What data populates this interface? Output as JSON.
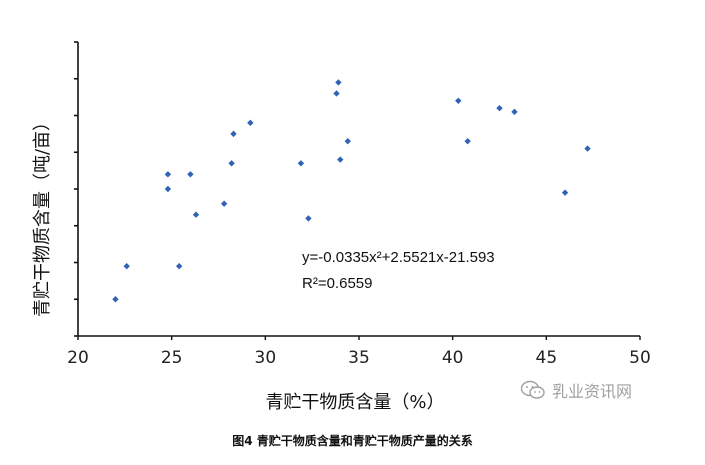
{
  "chart_data": {
    "type": "scatter",
    "xlabel": "青贮干物质含量（%）",
    "ylabel": "青贮干物质含量（吨/亩）",
    "xlim": [
      20,
      50
    ],
    "xticks": [
      "20",
      "25",
      "30",
      "35",
      "40",
      "45",
      "50"
    ],
    "ylim": [
      0,
      8
    ],
    "grid": false,
    "legend": "none",
    "equation": "y=-0.0335x²+2.5521x-21.593",
    "r_squared": "R²=0.6559",
    "trendline": {
      "a": -0.0335,
      "b": 2.5521,
      "c": -21.593,
      "x_range": [
        22,
        47.2
      ]
    },
    "points": [
      [
        22.0,
        1.0
      ],
      [
        22.6,
        1.9
      ],
      [
        24.8,
        4.0
      ],
      [
        24.8,
        4.4
      ],
      [
        25.4,
        1.9
      ],
      [
        26.0,
        4.4
      ],
      [
        26.3,
        3.3
      ],
      [
        27.8,
        3.6
      ],
      [
        28.2,
        4.7
      ],
      [
        28.3,
        5.5
      ],
      [
        29.2,
        5.8
      ],
      [
        31.9,
        4.7
      ],
      [
        32.3,
        3.2
      ],
      [
        33.8,
        6.6
      ],
      [
        33.9,
        6.9
      ],
      [
        34.0,
        4.8
      ],
      [
        34.4,
        5.3
      ],
      [
        40.3,
        6.4
      ],
      [
        40.8,
        5.3
      ],
      [
        42.5,
        6.2
      ],
      [
        43.3,
        6.1
      ],
      [
        46.0,
        3.9
      ],
      [
        47.2,
        5.1
      ]
    ],
    "colors": {
      "marker": "#2f63b6",
      "trendline": "#000000",
      "axis": "#111111"
    }
  },
  "caption": "图4 青贮干物质含量和青贮干物质产量的关系",
  "watermark": {
    "text": "乳业资讯网",
    "icon": "wechat-icon"
  }
}
